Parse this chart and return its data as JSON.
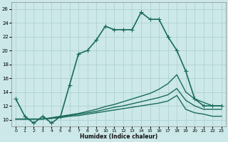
{
  "xlabel": "Humidex (Indice chaleur)",
  "ylabel": "",
  "bg_color": "#cce8e8",
  "line_color": "#1a6b5a",
  "grid_color": "#aacfcf",
  "xlim": [
    -0.5,
    23.5
  ],
  "ylim": [
    9.0,
    27.0
  ],
  "yticks": [
    10,
    12,
    14,
    16,
    18,
    20,
    22,
    24,
    26
  ],
  "xticks": [
    0,
    1,
    2,
    3,
    4,
    5,
    6,
    7,
    8,
    9,
    10,
    11,
    12,
    13,
    14,
    15,
    16,
    17,
    18,
    19,
    20,
    21,
    22,
    23
  ],
  "xtick_labels": [
    "0",
    "1",
    "2",
    "3",
    "4",
    "5",
    "6",
    "7",
    "8",
    "9",
    "10",
    "11",
    "12",
    "13",
    "14",
    "15",
    "16",
    "17",
    "18",
    "19",
    "20",
    "21",
    "22",
    "23"
  ],
  "lines": [
    {
      "x": [
        0,
        1,
        2,
        3,
        4,
        5,
        6,
        7,
        8,
        9,
        10,
        11,
        12,
        13,
        14,
        15,
        16,
        17,
        18,
        19,
        20,
        21,
        22,
        23
      ],
      "y": [
        13,
        10.5,
        9.5,
        10.5,
        9.5,
        10.5,
        15,
        19.5,
        20,
        21.5,
        23.5,
        23,
        23,
        23,
        25.5,
        24.5,
        24.5,
        22,
        20,
        17,
        13,
        12,
        12,
        12
      ],
      "marker": "+",
      "markersize": 4,
      "lw": 1.2
    },
    {
      "x": [
        0,
        1,
        2,
        3,
        4,
        5,
        6,
        7,
        8,
        9,
        10,
        11,
        12,
        13,
        14,
        15,
        16,
        17,
        18,
        19,
        20,
        21,
        22,
        23
      ],
      "y": [
        10.1,
        10.1,
        10.1,
        10.1,
        10.3,
        10.5,
        10.7,
        10.9,
        11.2,
        11.5,
        11.9,
        12.2,
        12.6,
        13.0,
        13.4,
        13.8,
        14.4,
        15.2,
        16.5,
        14.0,
        13.0,
        12.5,
        12.0,
        12.0
      ],
      "marker": "",
      "markersize": 0,
      "lw": 1.0
    },
    {
      "x": [
        0,
        1,
        2,
        3,
        4,
        5,
        6,
        7,
        8,
        9,
        10,
        11,
        12,
        13,
        14,
        15,
        16,
        17,
        18,
        19,
        20,
        21,
        22,
        23
      ],
      "y": [
        10.1,
        10.1,
        10.1,
        10.1,
        10.2,
        10.4,
        10.6,
        10.8,
        11.0,
        11.2,
        11.5,
        11.8,
        12.0,
        12.3,
        12.6,
        12.9,
        13.2,
        13.6,
        14.5,
        12.8,
        12.0,
        11.5,
        11.5,
        11.5
      ],
      "marker": "",
      "markersize": 0,
      "lw": 1.0
    },
    {
      "x": [
        0,
        1,
        2,
        3,
        4,
        5,
        6,
        7,
        8,
        9,
        10,
        11,
        12,
        13,
        14,
        15,
        16,
        17,
        18,
        19,
        20,
        21,
        22,
        23
      ],
      "y": [
        10.1,
        10.1,
        10.1,
        10.1,
        10.2,
        10.3,
        10.5,
        10.6,
        10.8,
        11.0,
        11.2,
        11.4,
        11.6,
        11.8,
        12.0,
        12.2,
        12.4,
        12.7,
        13.5,
        11.5,
        11.0,
        10.8,
        10.5,
        10.5
      ],
      "marker": "",
      "markersize": 0,
      "lw": 1.0
    }
  ]
}
